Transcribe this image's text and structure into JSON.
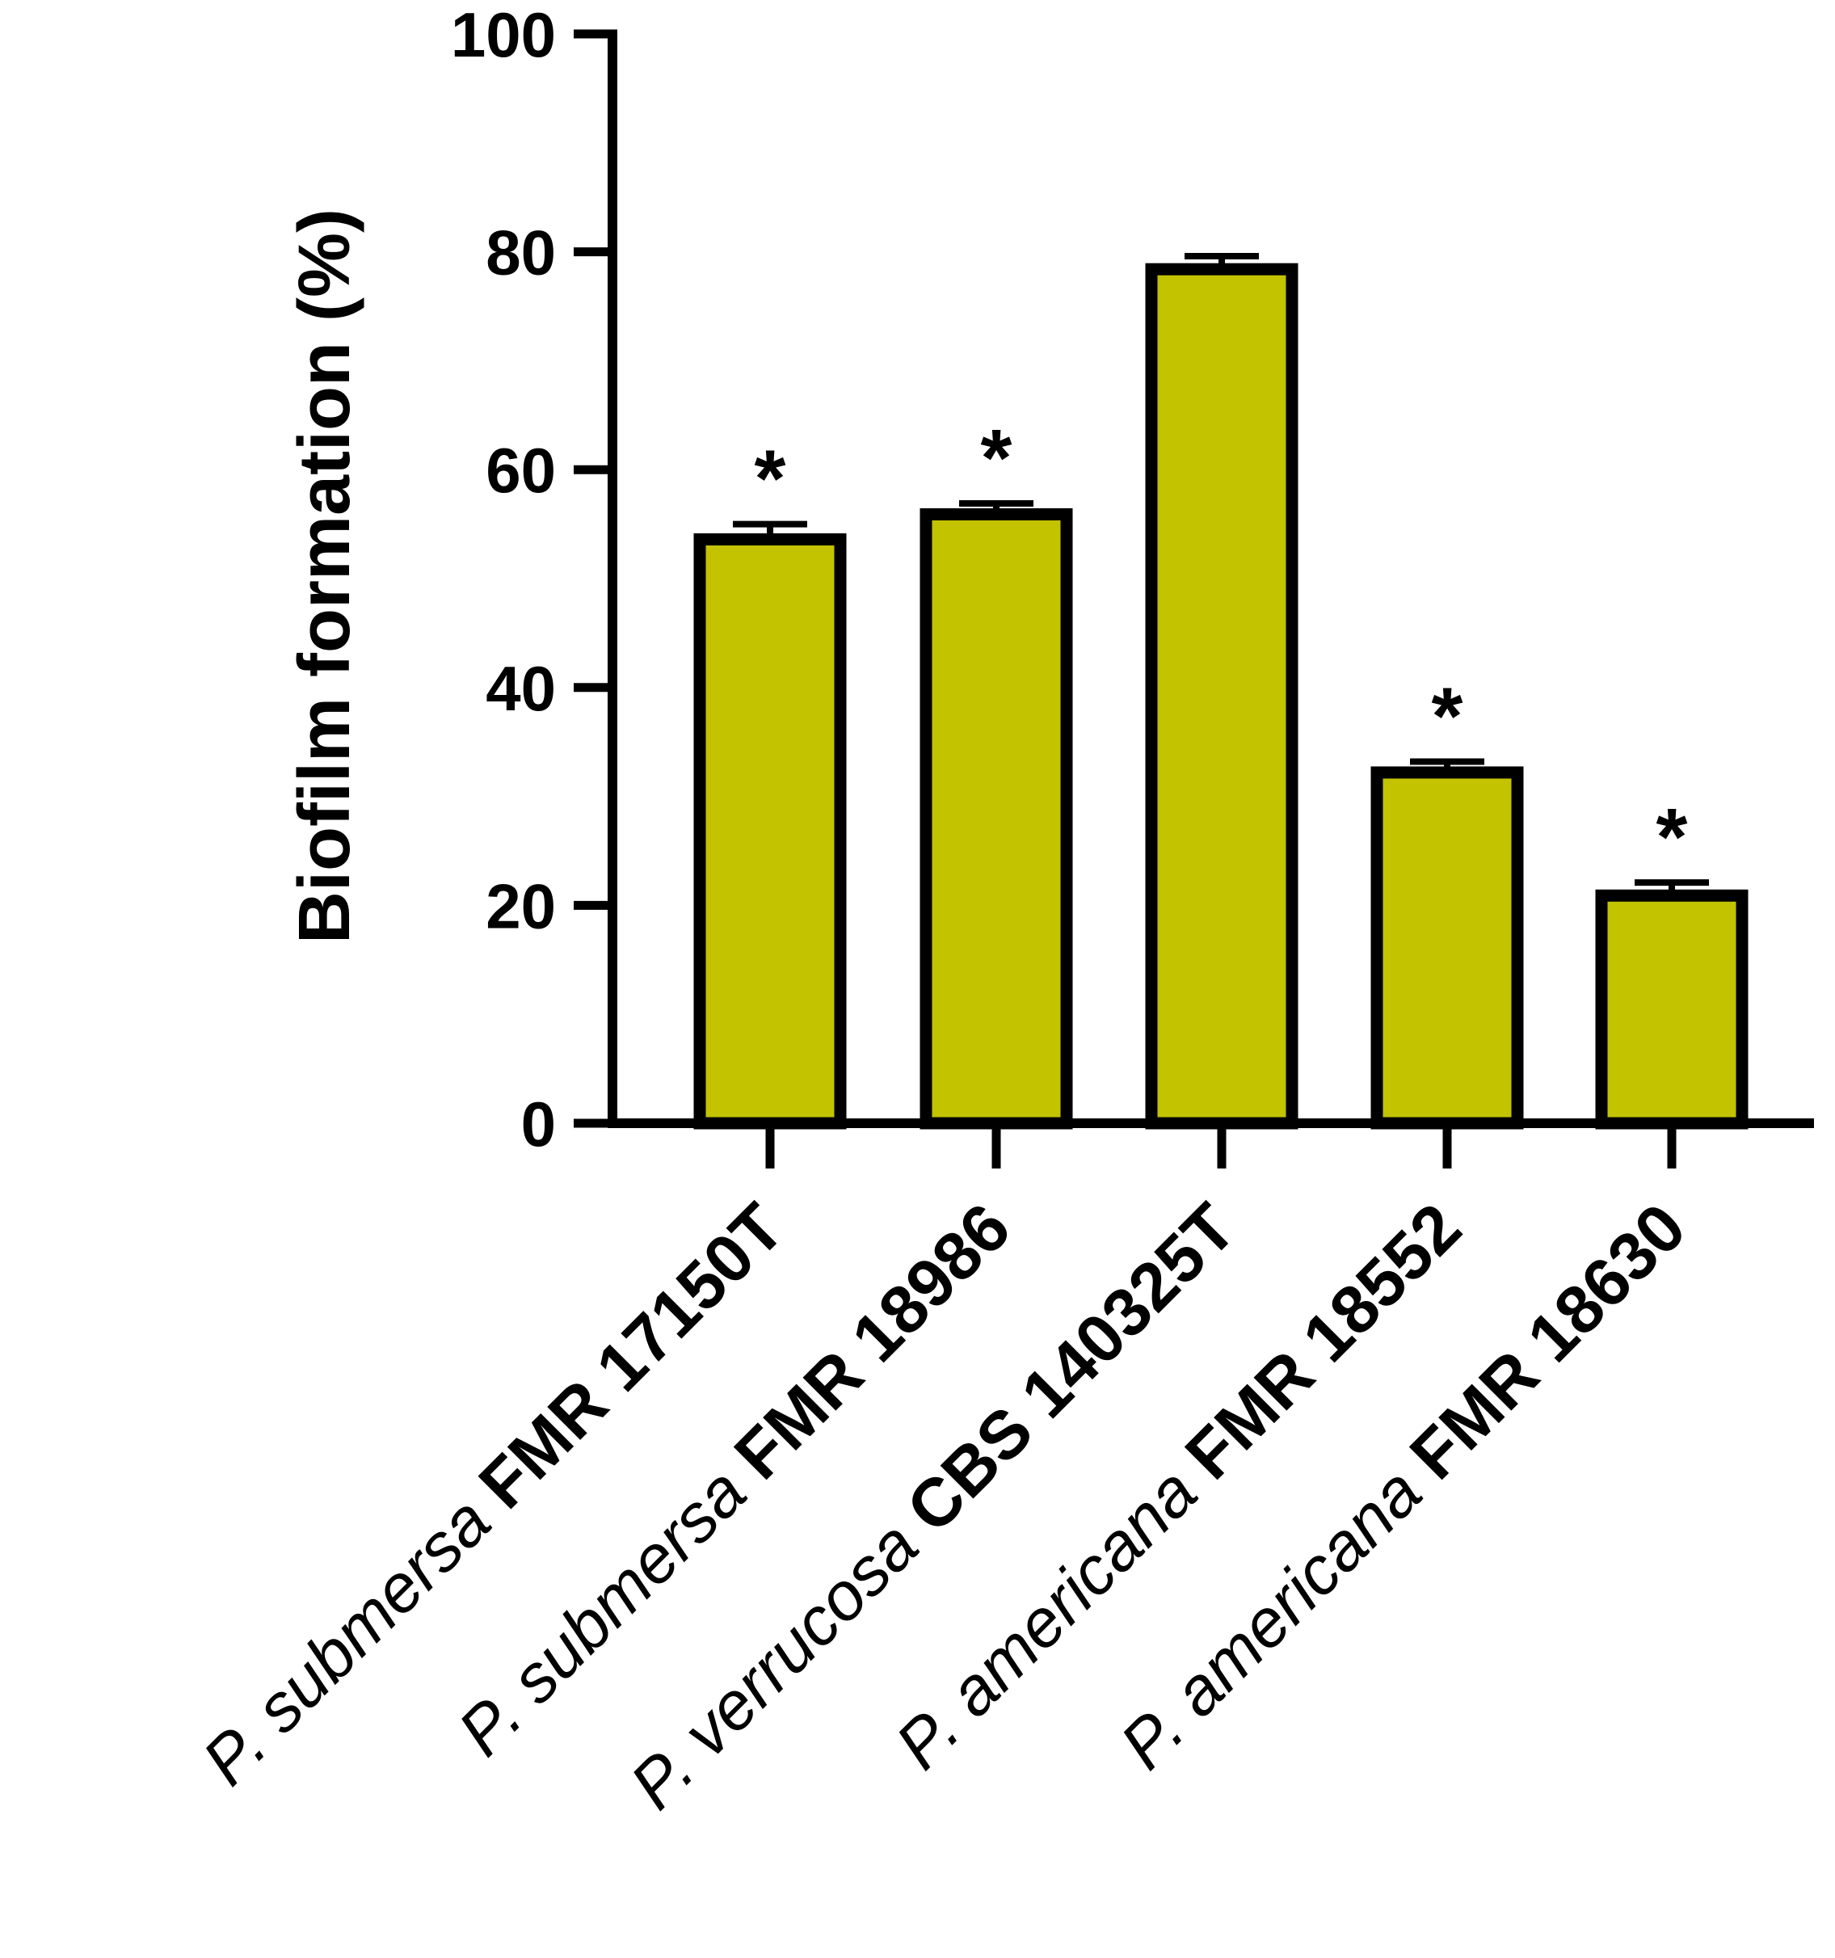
{
  "chart_data": {
    "type": "bar",
    "categories": [
      {
        "species": "P. submersa",
        "strain": "FMR 17150T"
      },
      {
        "species": "P. submersa",
        "strain": "FMR 18986"
      },
      {
        "species": "P. verrucosa",
        "strain": "CBS 140325T"
      },
      {
        "species": "P. americana",
        "strain": "FMR 18552"
      },
      {
        "species": "P. americana",
        "strain": "FMR 18630"
      }
    ],
    "values": [
      53.6,
      55.9,
      78.4,
      32.2,
      20.9
    ],
    "errors": [
      1.4,
      1.0,
      1.2,
      1.0,
      1.2
    ],
    "significance": [
      "*",
      "*",
      "",
      "*",
      "*"
    ],
    "title": "",
    "xlabel": "",
    "ylabel": "Biofilm formation (%)",
    "ylim": [
      0,
      100
    ],
    "yticks": [
      "0",
      "20",
      "40",
      "60",
      "80",
      "100"
    ],
    "grid": false,
    "colors": {
      "bar_fill": "#c3c300",
      "bar_edge": "#000000"
    }
  }
}
